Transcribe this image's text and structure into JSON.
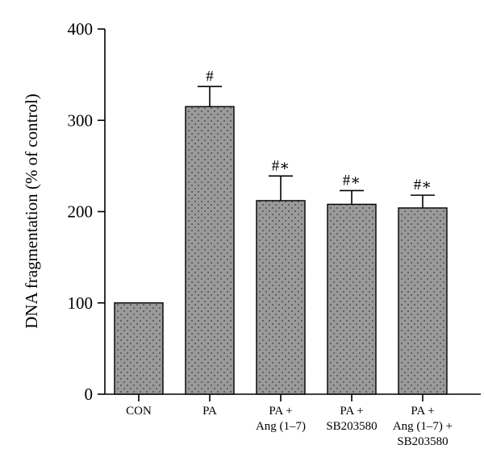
{
  "chart_data": {
    "type": "bar",
    "title": "",
    "xlabel": "",
    "ylabel": "DNA fragmentation (% of control)",
    "ylim": [
      0,
      400
    ],
    "yticks": [
      "0",
      "100",
      "200",
      "300",
      "400"
    ],
    "categories": [
      [
        "CON"
      ],
      [
        "PA"
      ],
      [
        "PA +",
        "Ang (1–7)"
      ],
      [
        "PA +",
        "SB203580"
      ],
      [
        "PA +",
        "Ang (1–7) +",
        "SB203580"
      ]
    ],
    "values": [
      100,
      315,
      212,
      208,
      204
    ],
    "errors": [
      0,
      22,
      27,
      15,
      14
    ],
    "annotations": [
      "",
      "#",
      "#∗",
      "#∗",
      "#∗"
    ],
    "grid": false,
    "bar_color": "#9a9a9a"
  }
}
